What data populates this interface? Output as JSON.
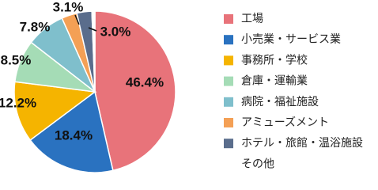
{
  "chart_data": {
    "type": "pie",
    "categories": [
      "工場",
      "小売業・サービス業",
      "事務所・学校",
      "倉庫・運輸業",
      "病院・福祉施設",
      "アミューズメント",
      "ホテル・旅館・温浴施設",
      "その他"
    ],
    "values": [
      46.4,
      18.4,
      12.2,
      8.5,
      7.8,
      3.1,
      3.0,
      0.6
    ],
    "value_labels": [
      "46.4%",
      "18.4%",
      "12.2%",
      "8.5%",
      "7.8%",
      "3.1%",
      "3.0%",
      null
    ],
    "colors": [
      "#e8737a",
      "#2a72c0",
      "#f5b400",
      "#a5dcb6",
      "#7fbfcc",
      "#f4a055",
      "#5a6d8c",
      "#ffffff"
    ],
    "legend": "right"
  }
}
